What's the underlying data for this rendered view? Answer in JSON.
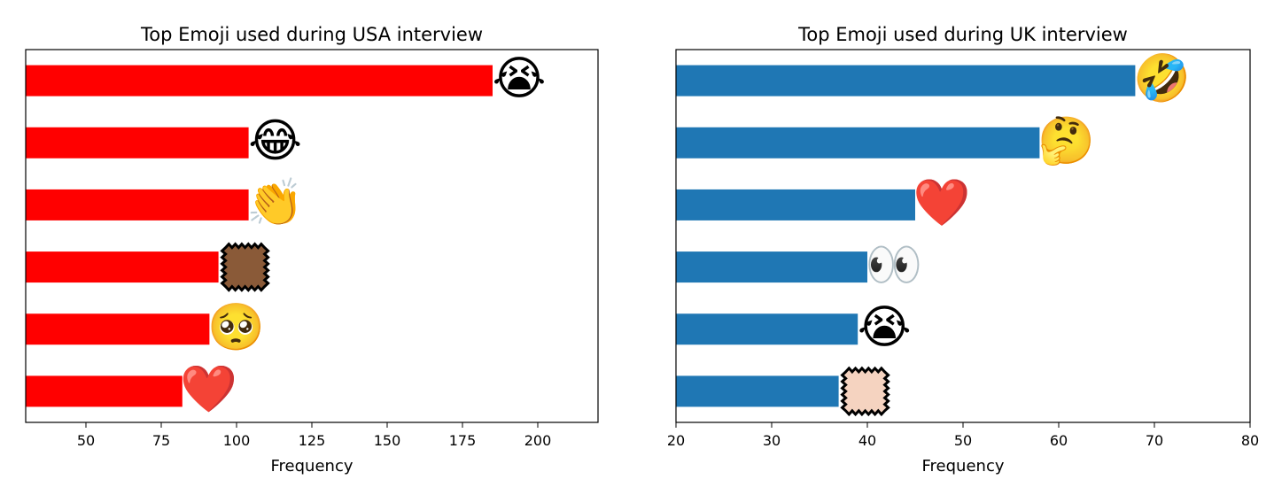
{
  "chart_data": [
    {
      "type": "bar",
      "orientation": "horizontal",
      "title": "Top Emoji used during USA interview",
      "xlabel": "Frequency",
      "ylabel": "",
      "xlim": [
        30,
        220
      ],
      "xticks": [
        50,
        75,
        100,
        125,
        150,
        175,
        200
      ],
      "bar_color": "#ff0000",
      "categories": [
        "loudly-crying-face",
        "face-with-tears-of-joy",
        "clapping-hands",
        "medium-dark-skin-tone-swatch",
        "pleading-face",
        "red-heart"
      ],
      "values": [
        185,
        104,
        104,
        94,
        91,
        82
      ],
      "emoji": [
        {
          "name": "loudly-crying-face",
          "glyph": "😭"
        },
        {
          "name": "face-with-tears-of-joy",
          "glyph": "😂"
        },
        {
          "name": "clapping-hands",
          "glyph": "👏"
        },
        {
          "name": "medium-dark-skin-tone-swatch",
          "glyph": "",
          "swatch_color": "#8a5a38"
        },
        {
          "name": "pleading-face",
          "glyph": "🥺"
        },
        {
          "name": "red-heart",
          "glyph": "❤️"
        }
      ]
    },
    {
      "type": "bar",
      "orientation": "horizontal",
      "title": "Top Emoji used during UK interview",
      "xlabel": "Frequency",
      "ylabel": "",
      "xlim": [
        20,
        80
      ],
      "xticks": [
        20,
        30,
        40,
        50,
        60,
        70,
        80
      ],
      "bar_color": "#1f77b4",
      "categories": [
        "rolling-on-the-floor-laughing",
        "thinking-face",
        "red-heart",
        "eyes",
        "loudly-crying-face",
        "light-skin-tone-swatch"
      ],
      "values": [
        68,
        58,
        45,
        40,
        39,
        37
      ],
      "emoji": [
        {
          "name": "rolling-on-the-floor-laughing",
          "glyph": "🤣"
        },
        {
          "name": "thinking-face",
          "glyph": "🤔"
        },
        {
          "name": "red-heart",
          "glyph": "❤️"
        },
        {
          "name": "eyes",
          "glyph": "👀"
        },
        {
          "name": "loudly-crying-face",
          "glyph": "😭"
        },
        {
          "name": "light-skin-tone-swatch",
          "glyph": "",
          "swatch_color": "#f5d3c0"
        }
      ]
    }
  ]
}
